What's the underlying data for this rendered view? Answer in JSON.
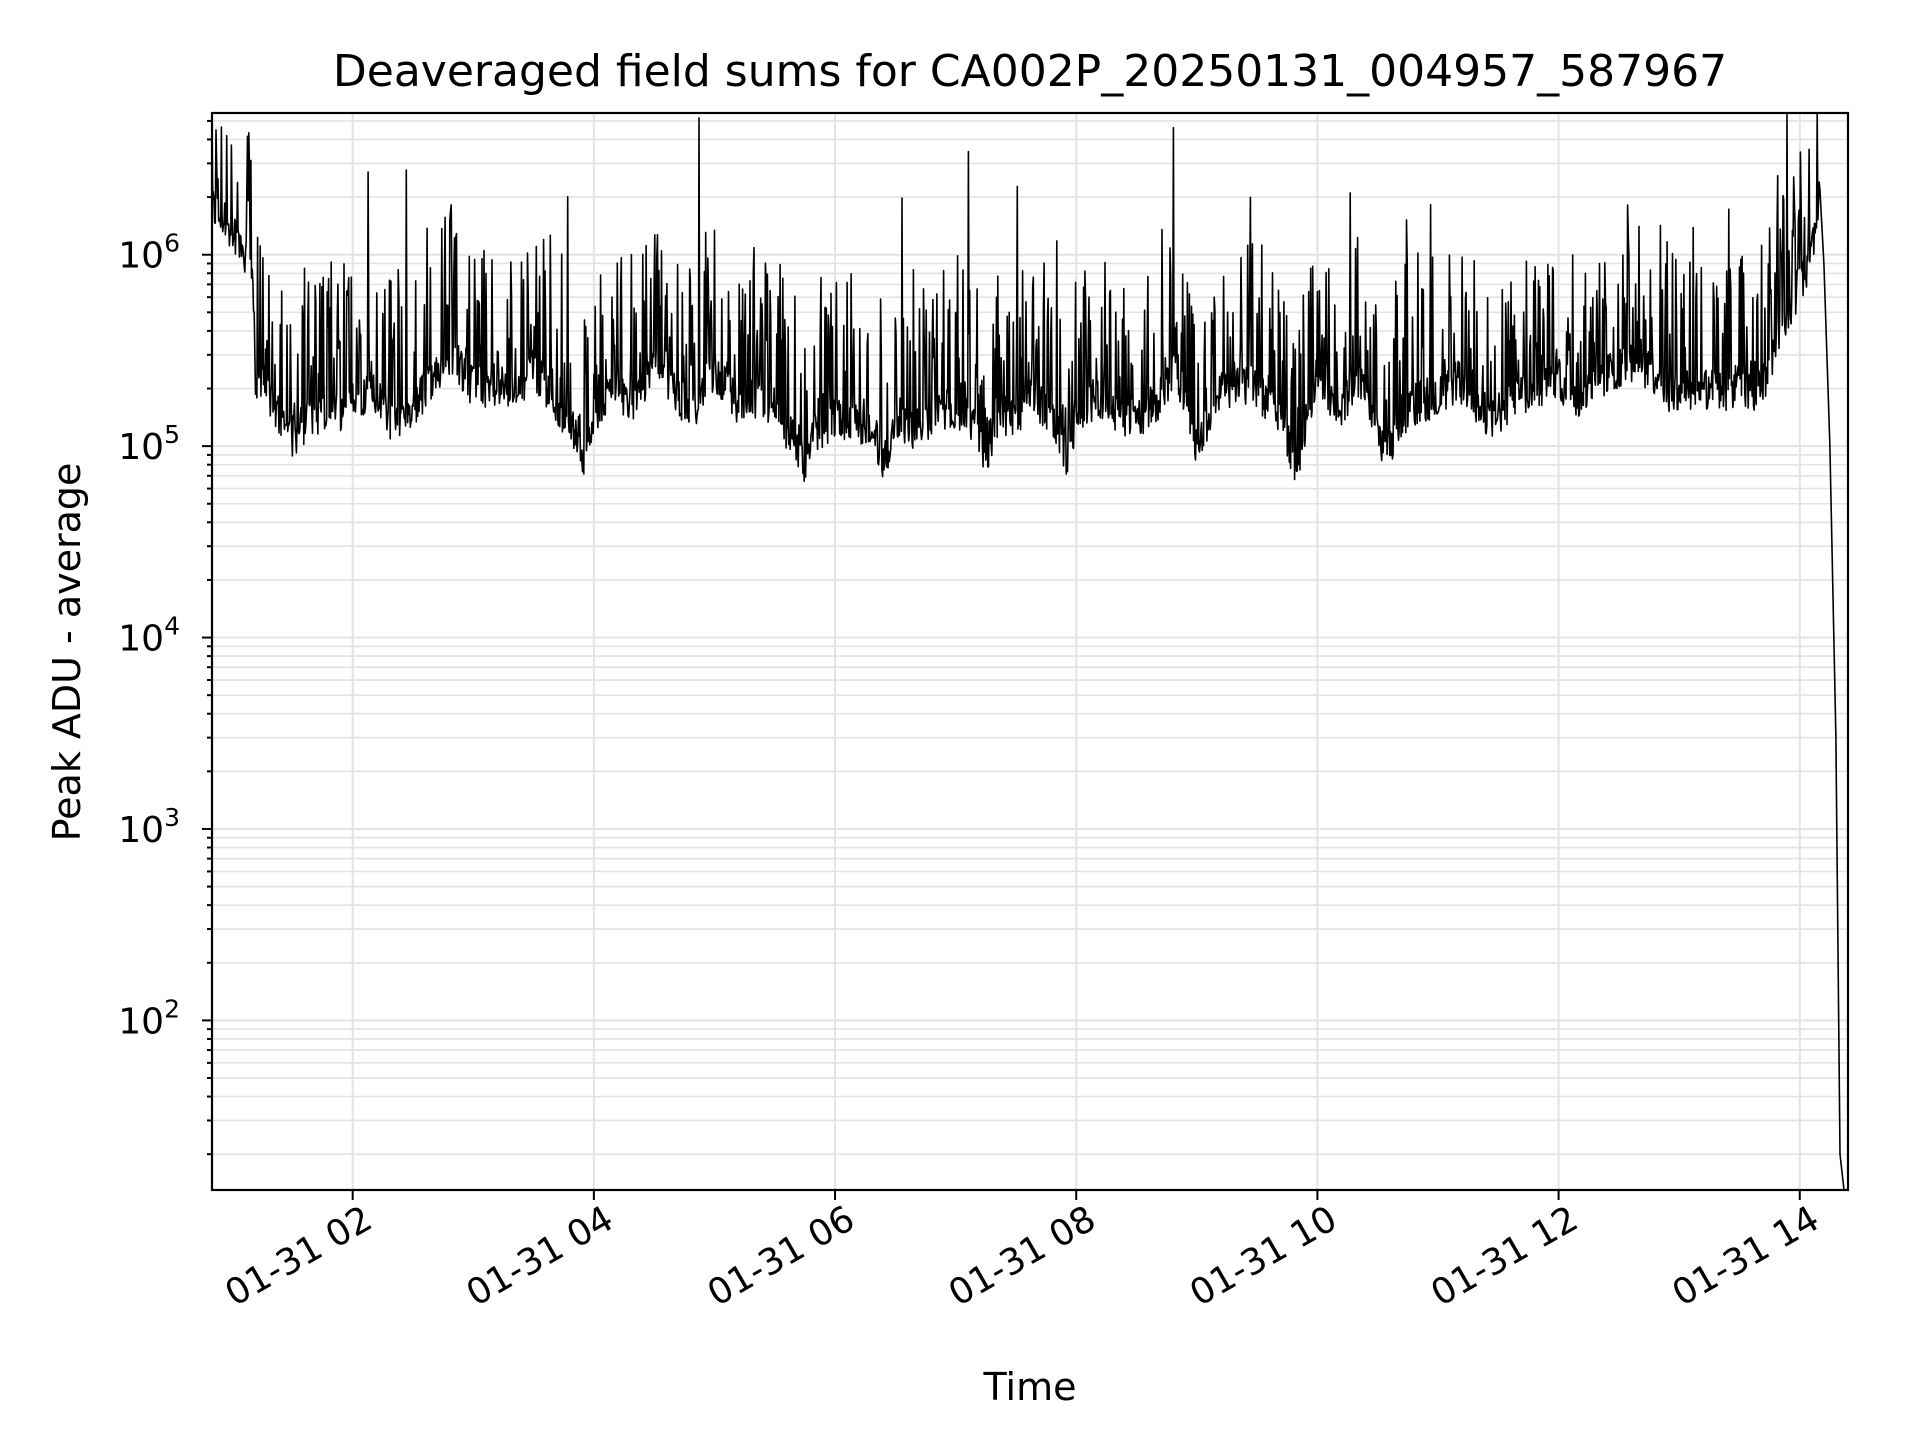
{
  "chart_data": {
    "type": "line",
    "title": "Deaveraged field sums for CA002P_20250131_004957_587967",
    "xlabel": "Time",
    "ylabel": "Peak ADU - average",
    "yscale": "log",
    "ylim": [
      13,
      5500000
    ],
    "xlim": [
      "01-31 00:50",
      "01-31 14:24"
    ],
    "grid": true,
    "line_color": "#000000",
    "x_ticks": [
      {
        "value": "01-31 02:00",
        "label": "01-31 02"
      },
      {
        "value": "01-31 04:00",
        "label": "01-31 04"
      },
      {
        "value": "01-31 06:00",
        "label": "01-31 06"
      },
      {
        "value": "01-31 08:00",
        "label": "01-31 08"
      },
      {
        "value": "01-31 10:00",
        "label": "01-31 10"
      },
      {
        "value": "01-31 12:00",
        "label": "01-31 12"
      },
      {
        "value": "01-31 14:00",
        "label": "01-31 14"
      }
    ],
    "y_ticks": [
      {
        "value": 100,
        "base": "10",
        "exp": "2"
      },
      {
        "value": 1000,
        "base": "10",
        "exp": "3"
      },
      {
        "value": 10000,
        "base": "10",
        "exp": "4"
      },
      {
        "value": 100000,
        "base": "10",
        "exp": "5"
      },
      {
        "value": 1000000,
        "base": "10",
        "exp": "6"
      }
    ],
    "series": [
      {
        "x": [
          "01-31 00:50",
          "01-31 00:55",
          "01-31 01:00",
          "01-31 01:05",
          "01-31 01:10",
          "01-31 01:12",
          "01-31 01:15",
          "01-31 01:20",
          "01-31 01:30",
          "01-31 01:40",
          "01-31 01:50",
          "01-31 02:00",
          "01-31 02:10",
          "01-31 02:20",
          "01-31 02:30",
          "01-31 02:40",
          "01-31 02:50",
          "01-31 03:00",
          "01-31 03:10",
          "01-31 03:20",
          "01-31 03:30",
          "01-31 03:40",
          "01-31 03:50",
          "01-31 03:55",
          "01-31 04:00",
          "01-31 04:10",
          "01-31 04:20",
          "01-31 04:30",
          "01-31 04:40",
          "01-31 04:50",
          "01-31 05:00",
          "01-31 05:10",
          "01-31 05:20",
          "01-31 05:30",
          "01-31 05:40",
          "01-31 05:45",
          "01-31 05:50",
          "01-31 06:00",
          "01-31 06:10",
          "01-31 06:20",
          "01-31 06:25",
          "01-31 06:30",
          "01-31 06:40",
          "01-31 06:50",
          "01-31 07:00",
          "01-31 07:10",
          "01-31 07:15",
          "01-31 07:20",
          "01-31 07:30",
          "01-31 07:40",
          "01-31 07:50",
          "01-31 07:55",
          "01-31 08:00",
          "01-31 08:10",
          "01-31 08:20",
          "01-31 08:30",
          "01-31 08:40",
          "01-31 08:50",
          "01-31 09:00",
          "01-31 09:10",
          "01-31 09:20",
          "01-31 09:30",
          "01-31 09:40",
          "01-31 09:50",
          "01-31 10:00",
          "01-31 10:10",
          "01-31 10:20",
          "01-31 10:30",
          "01-31 10:35",
          "01-31 10:40",
          "01-31 10:50",
          "01-31 11:00",
          "01-31 11:10",
          "01-31 11:20",
          "01-31 11:30",
          "01-31 11:40",
          "01-31 11:50",
          "01-31 12:00",
          "01-31 12:10",
          "01-31 12:20",
          "01-31 12:30",
          "01-31 12:40",
          "01-31 12:50",
          "01-31 13:00",
          "01-31 13:10",
          "01-31 13:20",
          "01-31 13:30",
          "01-31 13:40",
          "01-31 13:50",
          "01-31 14:00",
          "01-31 14:05",
          "01-31 14:10",
          "01-31 14:12",
          "01-31 14:15",
          "01-31 14:18",
          "01-31 14:20",
          "01-31 14:22"
        ],
        "y": [
          1800000,
          1500000,
          1400000,
          1100000,
          900000,
          180000,
          250000,
          160000,
          110000,
          150000,
          140000,
          170000,
          200000,
          130000,
          160000,
          230000,
          300000,
          200000,
          210000,
          190000,
          250000,
          180000,
          120000,
          80000,
          150000,
          200000,
          170000,
          260000,
          200000,
          140000,
          250000,
          170000,
          180000,
          150000,
          110000,
          75000,
          120000,
          140000,
          130000,
          110000,
          80000,
          140000,
          120000,
          150000,
          160000,
          130000,
          85000,
          140000,
          150000,
          170000,
          130000,
          90000,
          130000,
          180000,
          150000,
          140000,
          170000,
          250000,
          100000,
          180000,
          220000,
          200000,
          140000,
          80000,
          260000,
          150000,
          230000,
          120000,
          90000,
          130000,
          170000,
          180000,
          220000,
          160000,
          130000,
          190000,
          200000,
          230000,
          160000,
          220000,
          260000,
          280000,
          210000,
          180000,
          200000,
          190000,
          210000,
          180000,
          400000,
          700000,
          850000,
          2200000,
          900000,
          100000,
          3000,
          20,
          13
        ]
      }
    ]
  }
}
